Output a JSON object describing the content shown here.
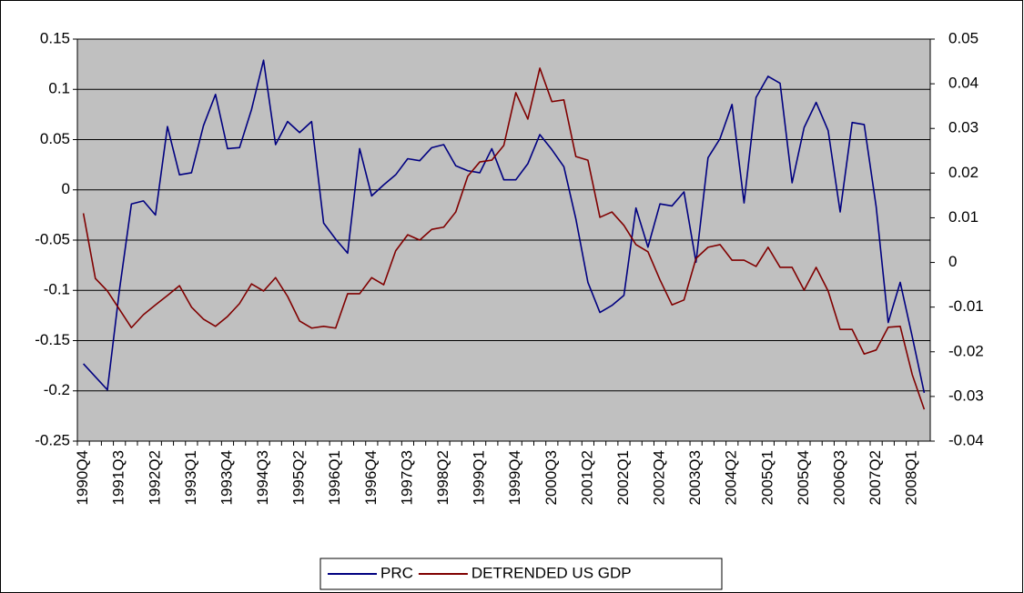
{
  "chart_data": {
    "type": "line",
    "categories": [
      "1990Q4",
      null,
      null,
      "1991Q3",
      null,
      null,
      "1992Q2",
      null,
      null,
      "1993Q1",
      null,
      null,
      "1993Q4",
      null,
      null,
      "1994Q3",
      null,
      null,
      "1995Q2",
      null,
      null,
      "1996Q1",
      null,
      null,
      "1996Q4",
      null,
      null,
      "1997Q3",
      null,
      null,
      "1998Q2",
      null,
      null,
      "1999Q1",
      null,
      null,
      "1999Q4",
      null,
      null,
      "2000Q3",
      null,
      null,
      "2001Q2",
      null,
      null,
      "2002Q1",
      null,
      null,
      "2002Q4",
      null,
      null,
      "2003Q3",
      null,
      null,
      "2004Q2",
      null,
      null,
      "2005Q1",
      null,
      null,
      "2005Q4",
      null,
      null,
      "2006Q3",
      null,
      null,
      "2007Q2",
      null,
      null,
      "2008Q1",
      null
    ],
    "series": [
      {
        "name": "PRC",
        "color": "#000080",
        "values": [
          -0.173,
          -0.186,
          -0.199,
          -0.1,
          -0.014,
          -0.011,
          -0.025,
          0.063,
          0.015,
          0.017,
          0.064,
          0.095,
          0.041,
          0.042,
          0.08,
          0.129,
          0.045,
          0.068,
          0.057,
          0.068,
          -0.033,
          -0.049,
          -0.063,
          0.041,
          -0.006,
          0.005,
          0.015,
          0.031,
          0.029,
          0.042,
          0.045,
          0.024,
          0.019,
          0.017,
          0.041,
          0.01,
          0.01,
          0.026,
          0.055,
          0.04,
          0.023,
          -0.029,
          -0.092,
          -0.122,
          -0.115,
          -0.105,
          -0.018,
          -0.057,
          -0.014,
          -0.016,
          -0.002,
          -0.072,
          0.032,
          0.051,
          0.085,
          -0.013,
          0.092,
          0.113,
          0.106,
          0.007,
          0.062,
          0.087,
          0.059,
          -0.022,
          0.067,
          0.065,
          -0.017,
          -0.132,
          -0.092,
          -0.146,
          -0.202
        ]
      },
      {
        "name": "DETRENDED US GDP",
        "color": "#800000",
        "axis": "y2",
        "values": [
          0.011,
          -0.0036,
          -0.0064,
          -0.0105,
          -0.0146,
          -0.0117,
          -0.0095,
          -0.0074,
          -0.0052,
          -0.01,
          -0.0127,
          -0.0143,
          -0.0121,
          -0.0092,
          -0.0048,
          -0.0064,
          -0.0034,
          -0.0076,
          -0.0131,
          -0.0147,
          -0.0143,
          -0.0147,
          -0.007,
          -0.007,
          -0.0034,
          -0.005,
          0.0026,
          0.0062,
          0.005,
          0.0074,
          0.0079,
          0.0113,
          0.0193,
          0.0225,
          0.0229,
          0.0262,
          0.038,
          0.0321,
          0.0435,
          0.036,
          0.0364,
          0.0237,
          0.0229,
          0.0101,
          0.0113,
          0.0083,
          0.004,
          0.0024,
          -0.0039,
          -0.0095,
          -0.0084,
          0.0009,
          0.0034,
          0.004,
          0.0005,
          0.0005,
          -0.0009,
          0.0034,
          -0.0011,
          -0.0011,
          -0.0062,
          -0.0011,
          -0.0064,
          -0.015,
          -0.015,
          -0.0205,
          -0.0196,
          -0.0145,
          -0.0143,
          -0.0251,
          -0.0329
        ]
      }
    ],
    "ylim": [
      -0.25,
      0.15
    ],
    "yticks": [
      0.15,
      0.1,
      0.05,
      0,
      -0.05,
      -0.1,
      -0.15,
      -0.2,
      -0.25
    ],
    "y2lim": [
      -0.04,
      0.05
    ],
    "y2ticks": [
      0.05,
      0.04,
      0.03,
      0.02,
      0.01,
      0,
      -0.01,
      -0.02,
      -0.03,
      -0.04
    ],
    "grid": true,
    "legend": "bottom",
    "plot_background": "#c0c0c0"
  }
}
